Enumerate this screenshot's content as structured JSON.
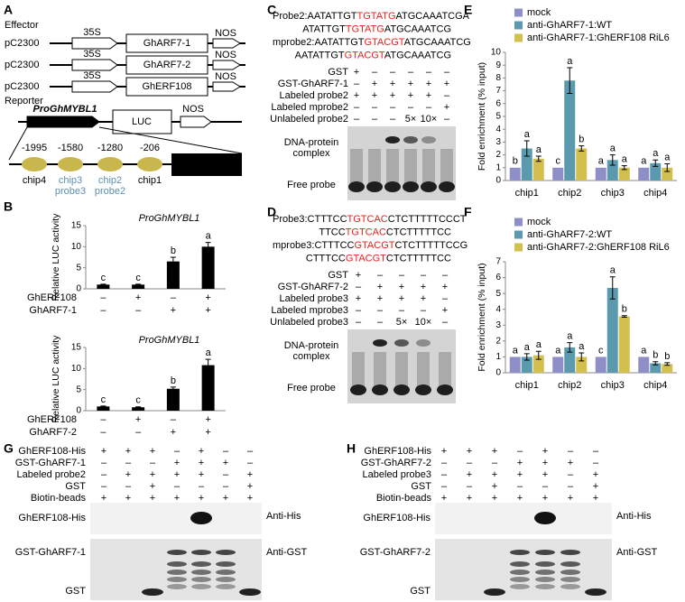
{
  "panel_labels": [
    "A",
    "B",
    "C",
    "D",
    "E",
    "F",
    "G",
    "H"
  ],
  "panel_a": {
    "effector_label": "Effector",
    "constructs": [
      {
        "vector": "pC2300",
        "promoter": "35S",
        "gene": "GhARF7-1",
        "terminator": "NOS"
      },
      {
        "vector": "pC2300",
        "promoter": "35S",
        "gene": "GhARF7-2",
        "terminator": "NOS"
      },
      {
        "vector": "pC2300",
        "promoter": "35S",
        "gene": "GhERF108",
        "terminator": "NOS"
      }
    ],
    "reporter_label": "Reporter",
    "reporter": {
      "promoter": "ProGhMYBL1",
      "gene": "LUC",
      "terminator": "NOS"
    },
    "sites": [
      {
        "position": "-1995",
        "labels": [
          "chip4"
        ],
        "color": "#000000"
      },
      {
        "position": "-1580",
        "labels": [
          "chip3",
          "probe3"
        ],
        "color": "#5b8fb0"
      },
      {
        "position": "-1280",
        "labels": [
          "chip2",
          "probe2"
        ],
        "color": "#5b8fb0"
      },
      {
        "position": "-206",
        "labels": [
          "chip1"
        ],
        "color": "#000000"
      }
    ]
  },
  "panel_c": {
    "highlight_color": "#e8201e",
    "sequences": [
      [
        "Probe2:AATATTGT",
        "TGTATG",
        "ATGCAAATCGA"
      ],
      [
        "ATATTGT",
        "TGTATG",
        "ATGCAAATCG"
      ],
      [
        "mprobe2:AATATTGT",
        "GTACGT",
        "ATGCAAATCG"
      ],
      [
        "AATATTGT",
        "GTACGT",
        "ATGCAAATCG"
      ]
    ],
    "rows": [
      {
        "label": "GST",
        "lanes": [
          "+",
          "–",
          "–",
          "–",
          "–",
          "–"
        ]
      },
      {
        "label": "GST-GhARF7-1",
        "lanes": [
          "–",
          "+",
          "+",
          "+",
          "+",
          "+"
        ]
      },
      {
        "label": "Labeled probe2",
        "lanes": [
          "+",
          "+",
          "+",
          "+",
          "+",
          "–"
        ]
      },
      {
        "label": "Labeled mprobe2",
        "lanes": [
          "–",
          "–",
          "–",
          "–",
          "–",
          "+"
        ]
      },
      {
        "label": "Unlabeled probe2",
        "lanes": [
          "–",
          "–",
          "–",
          "5×",
          "10×",
          "–"
        ]
      }
    ],
    "complex_label": [
      "DNA-protein",
      "complex"
    ],
    "free_label": "Free probe"
  },
  "panel_d": {
    "highlight_color": "#e8201e",
    "sequences": [
      [
        "Probe3:CTTTCC",
        "TGTCAC",
        "CTCTTTTTCCCT"
      ],
      [
        "TTCC",
        "TGTCAC",
        "CTCTTTTTCC"
      ],
      [
        "mprobe3:CTTTCC",
        "GTACGT",
        "CTCTTTTTCCG"
      ],
      [
        "CTTTCC",
        "GTACGT",
        "CTCTTTTTCC"
      ]
    ],
    "rows": [
      {
        "label": "GST",
        "lanes": [
          "+",
          "–",
          "–",
          "–",
          "–"
        ]
      },
      {
        "label": "GST-GhARF7-2",
        "lanes": [
          "–",
          "+",
          "+",
          "+",
          "+"
        ]
      },
      {
        "label": "Labeled probe3",
        "lanes": [
          "+",
          "+",
          "+",
          "+",
          "–"
        ]
      },
      {
        "label": "Labeled mprobe3",
        "lanes": [
          "–",
          "–",
          "–",
          "–",
          "+"
        ]
      },
      {
        "label": "Unlabeled probe3",
        "lanes": [
          "–",
          "–",
          "5×",
          "10×",
          "–"
        ]
      }
    ],
    "complex_label": [
      "DNA-protein",
      "complex"
    ],
    "free_label": "Free probe"
  },
  "panel_g": {
    "rows": [
      {
        "label": "GhERF108-His",
        "lanes": [
          "+",
          "+",
          "+",
          "–",
          "+",
          "–",
          "–"
        ]
      },
      {
        "label": "GST-GhARF7-1",
        "lanes": [
          "–",
          "–",
          "–",
          "+",
          "+",
          "+",
          "–"
        ]
      },
      {
        "label": "Labeled probe2",
        "lanes": [
          "–",
          "+",
          "+",
          "+",
          "+",
          "–",
          "+"
        ]
      },
      {
        "label": "GST",
        "lanes": [
          "–",
          "–",
          "+",
          "–",
          "–",
          "–",
          "+"
        ]
      },
      {
        "label": "Biotin-beads",
        "lanes": [
          "+",
          "+",
          "+",
          "+",
          "+",
          "+",
          "+"
        ]
      }
    ],
    "blots": [
      {
        "labels": [
          "GhERF108-His"
        ],
        "antibody": "Anti-His"
      },
      {
        "labels": [
          "GST-GhARF7-1",
          "GST"
        ],
        "antibody": "Anti-GST"
      }
    ]
  },
  "panel_h": {
    "rows": [
      {
        "label": "GhERF108-His",
        "lanes": [
          "+",
          "+",
          "+",
          "–",
          "+",
          "–",
          "–"
        ]
      },
      {
        "label": "GST-GhARF7-2",
        "lanes": [
          "–",
          "–",
          "–",
          "+",
          "+",
          "+",
          "–"
        ]
      },
      {
        "label": "Labeled probe3",
        "lanes": [
          "–",
          "+",
          "+",
          "+",
          "+",
          "–",
          "+"
        ]
      },
      {
        "label": "GST",
        "lanes": [
          "–",
          "–",
          "+",
          "–",
          "–",
          "–",
          "+"
        ]
      },
      {
        "label": "Biotin-beads",
        "lanes": [
          "+",
          "+",
          "+",
          "+",
          "+",
          "+",
          "+"
        ]
      }
    ],
    "blots": [
      {
        "labels": [
          "GhERF108-His"
        ],
        "antibody": "Anti-His"
      },
      {
        "labels": [
          "GST-GhARF7-2",
          "GST"
        ],
        "antibody": "Anti-GST"
      }
    ]
  },
  "chart_data": [
    {
      "type": "bar",
      "title": "ProGhMYBL1",
      "y_label": "Relative LUC activity",
      "color": "#000000",
      "values": [
        1,
        1,
        6.5,
        10
      ],
      "errors": [
        0.1,
        0.1,
        1,
        1
      ],
      "letters": [
        "c",
        "c",
        "b",
        "a"
      ],
      "ylim": [
        0,
        15
      ],
      "yticks": [
        0,
        5,
        10,
        15
      ],
      "rows": [
        {
          "label": "GhERF108",
          "marks": [
            "–",
            "+",
            "–",
            "+"
          ]
        },
        {
          "label": "GhARF7-1",
          "marks": [
            "–",
            "–",
            "+",
            "+"
          ]
        }
      ]
    },
    {
      "type": "bar",
      "title": "ProGhMYBL1",
      "y_label": "Relative LUC activity",
      "color": "#000000",
      "values": [
        1,
        0.8,
        5.2,
        10.8
      ],
      "errors": [
        0.1,
        0.1,
        0.4,
        1.4
      ],
      "letters": [
        "c",
        "c",
        "b",
        "a"
      ],
      "ylim": [
        0,
        15
      ],
      "yticks": [
        0,
        5,
        10,
        15
      ],
      "rows": [
        {
          "label": "GhERF108",
          "marks": [
            "–",
            "+",
            "–",
            "+"
          ]
        },
        {
          "label": "GhARF7-2",
          "marks": [
            "–",
            "–",
            "+",
            "+"
          ]
        }
      ]
    },
    {
      "type": "bar",
      "y_label": "Fold enrichment (% input)",
      "categories": [
        "chip1",
        "chip2",
        "chip3",
        "chip4"
      ],
      "series": [
        {
          "name": "mock",
          "color": "#8f8fc8",
          "values": [
            1,
            1,
            1,
            1
          ],
          "letters": [
            "b",
            "c",
            "a",
            "a"
          ]
        },
        {
          "name": "anti-GhARF7-1:WT",
          "color": "#5b9aae",
          "values": [
            2.5,
            7.8,
            1.6,
            1.35
          ],
          "errors": [
            0.6,
            1.0,
            0.4,
            0.25
          ],
          "letters": [
            "a",
            "a",
            "a",
            "a"
          ]
        },
        {
          "name": "anti-GhARF7-1:GhERF108 RiL6",
          "color": "#d2bf4e",
          "values": [
            1.7,
            2.5,
            1.0,
            1.0
          ],
          "errors": [
            0.2,
            0.2,
            0.15,
            0.3
          ],
          "letters": [
            "a",
            "b",
            "a",
            "a"
          ]
        }
      ],
      "ylim": [
        0,
        10
      ],
      "yticks": [
        0,
        1,
        2,
        3,
        4,
        5,
        6,
        7,
        8,
        9,
        10
      ],
      "legend": "top"
    },
    {
      "type": "bar",
      "y_label": "Fold enrichment (% input)",
      "categories": [
        "chip1",
        "chip2",
        "chip3",
        "chip4"
      ],
      "series": [
        {
          "name": "mock",
          "color": "#8f8fc8",
          "values": [
            1,
            1,
            1,
            1
          ],
          "letters": [
            "a",
            "a",
            "c",
            "a"
          ]
        },
        {
          "name": "anti-GhARF7-2:WT",
          "color": "#5b9aae",
          "values": [
            1.0,
            1.6,
            5.35,
            0.6
          ],
          "errors": [
            0.2,
            0.3,
            0.7,
            0.1
          ],
          "letters": [
            "a",
            "a",
            "a",
            "b"
          ]
        },
        {
          "name": "anti-GhARF7-2:GhERF108 RiL6",
          "color": "#d2bf4e",
          "values": [
            1.1,
            1.0,
            3.55,
            0.55
          ],
          "errors": [
            0.25,
            0.25,
            0.05,
            0.08
          ],
          "letters": [
            "a",
            "a",
            "b",
            "b"
          ]
        }
      ],
      "ylim": [
        0,
        7
      ],
      "yticks": [
        0,
        1,
        2,
        3,
        4,
        5,
        6,
        7
      ],
      "legend": "top"
    }
  ]
}
